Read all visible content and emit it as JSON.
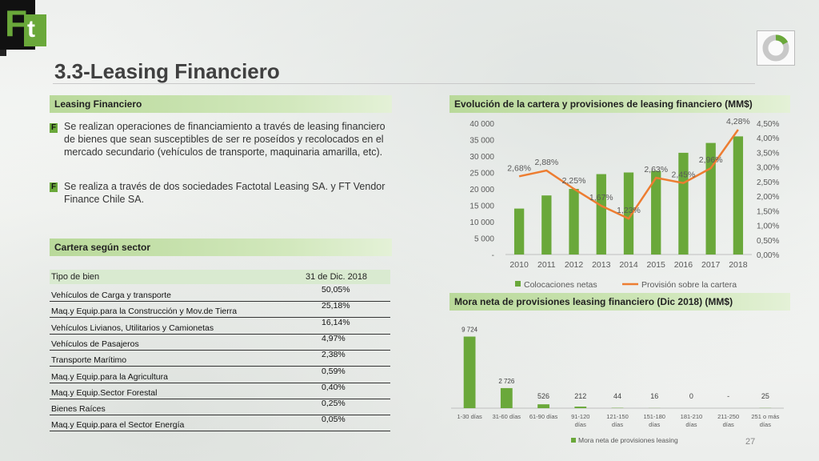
{
  "logo_text": {
    "f": "F",
    "t": "t"
  },
  "title": "3.3-Leasing Financiero",
  "page_number": "27",
  "leasing": {
    "header": "Leasing Financiero",
    "bullet_glyph": "F",
    "bullets": [
      "Se realizan operaciones de financiamiento a través de leasing financiero de bienes que sean susceptibles de ser re poseídos y recolocados en el mercado secundario (vehículos de transporte, maquinaria amarilla, etc).",
      "Se realiza a través de dos sociedades Factotal Leasing SA. y FT Vendor Finance Chile SA."
    ]
  },
  "sector": {
    "header": "Cartera según sector",
    "col1": "Tipo de bien",
    "col2": "31 de Dic. 2018",
    "rows": [
      {
        "name": "Vehículos de Carga y transporte",
        "value": "50,05%"
      },
      {
        "name": "Maq.y Equip.para la Construcción y Mov.de Tierra",
        "value": "25,18%"
      },
      {
        "name": "Vehículos Livianos, Utilitarios y Camionetas",
        "value": "16,14%"
      },
      {
        "name": "Vehículos de Pasajeros",
        "value": "4,97%"
      },
      {
        "name": "Transporte Marítimo",
        "value": "2,38%"
      },
      {
        "name": "Maq.y Equip.para la Agricultura",
        "value": "0,59%"
      },
      {
        "name": "Maq.y Equip.Sector Forestal",
        "value": "0,40%"
      },
      {
        "name": "Bienes Raíces",
        "value": "0,25%"
      },
      {
        "name": "Maq.y Equip.para el Sector Energía",
        "value": "0,05%"
      }
    ]
  },
  "chart_data": [
    {
      "type": "bar",
      "title": "Evolución de la cartera y provisiones de leasing financiero (MM$)",
      "categories": [
        "2010",
        "2011",
        "2012",
        "2013",
        "2014",
        "2015",
        "2016",
        "2017",
        "2018"
      ],
      "series": [
        {
          "name": "Colocaciones netas",
          "type": "bar",
          "axis": "left",
          "color": "#6aa83a",
          "values": [
            14000,
            18000,
            20000,
            24500,
            25000,
            25500,
            31000,
            34000,
            36000
          ]
        },
        {
          "name": "Provisión sobre la cartera",
          "type": "line",
          "axis": "right",
          "color": "#ed7d31",
          "values": [
            2.68,
            2.88,
            2.25,
            1.67,
            1.23,
            2.63,
            2.45,
            2.96,
            4.28
          ],
          "labels": [
            "2,68%",
            "2,88%",
            "2,25%",
            "1,67%",
            "1,23%",
            "2,63%",
            "2,45%",
            "2,96%",
            "4,28%"
          ]
        }
      ],
      "y_ticks": [
        "-",
        "5 000",
        "10 000",
        "15 000",
        "20 000",
        "25 000",
        "30 000",
        "35 000",
        "40 000"
      ],
      "ylim": [
        0,
        40000
      ],
      "y2_ticks": [
        "0,00%",
        "0,50%",
        "1,00%",
        "1,50%",
        "2,00%",
        "2,50%",
        "3,00%",
        "3,50%",
        "4,00%",
        "4,50%"
      ],
      "y2lim": [
        0,
        4.5
      ],
      "legend": "bottom"
    },
    {
      "type": "bar",
      "title": "Mora neta de provisiones leasing financiero (Dic 2018) (MM$)",
      "categories": [
        "1-30 días",
        "31-60 días",
        "61-90 días",
        "91-120 días",
        "121-150 días",
        "151-180 días",
        "181-210 días",
        "211-250 días",
        "251 o más días"
      ],
      "series": [
        {
          "name": "Mora neta de provisiones leasing",
          "color": "#6aa83a",
          "values": [
            9724,
            2726,
            526,
            212,
            44,
            16,
            0,
            0,
            25
          ],
          "labels": [
            "9 724",
            "2 726",
            "526",
            "212",
            "44",
            "16",
            "0",
            "-",
            "25"
          ]
        }
      ],
      "ylim": [
        0,
        10000
      ],
      "legend": "bottom"
    }
  ],
  "colors": {
    "accent": "#6aa83a",
    "line": "#ed7d31"
  }
}
